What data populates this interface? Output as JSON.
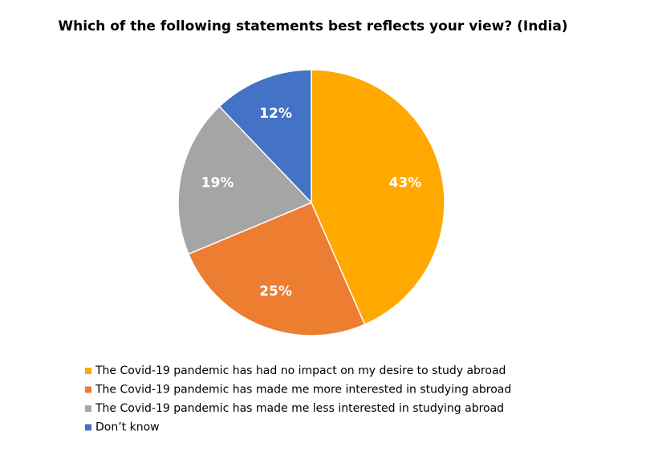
{
  "chart_data": {
    "type": "pie",
    "title": "Which of the following statements best reflects your view? (India)",
    "categories": [
      "The Covid-19 pandemic has had no impact on my desire to study abroad",
      "The Covid-19 pandemic has made me more interested in studying abroad",
      "The Covid-19 pandemic has made me less interested in studying abroad",
      "Don’t know"
    ],
    "values": [
      43,
      25,
      19,
      12
    ],
    "value_labels": [
      "43%",
      "25%",
      "19%",
      "12%"
    ],
    "colors": [
      "#ffa800",
      "#ed7d31",
      "#a5a5a5",
      "#4472c4"
    ]
  }
}
